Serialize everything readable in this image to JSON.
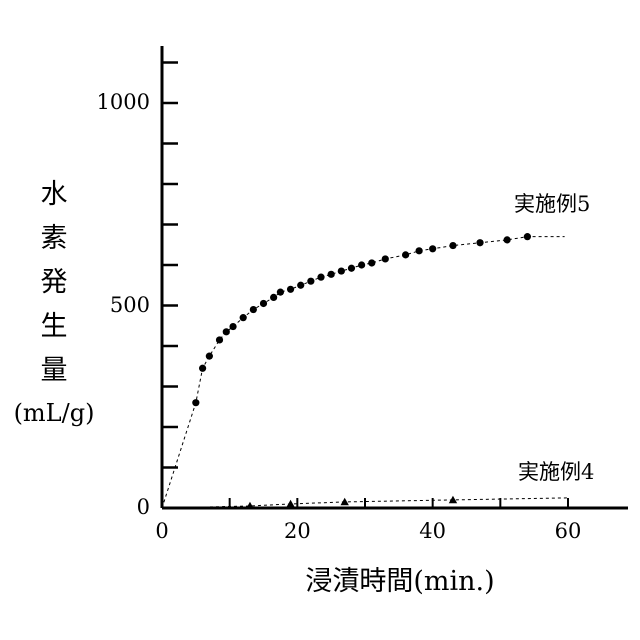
{
  "chart_data": {
    "type": "scatter",
    "title": "",
    "xlabel": "浸漬時間(min.)",
    "ylabel_chars": [
      "水",
      "素",
      "発",
      "生",
      "量"
    ],
    "ylabel_unit": "(mL/g)",
    "xlim": [
      0,
      70
    ],
    "ylim": [
      0,
      1150
    ],
    "x_ticks": [
      0,
      20,
      40,
      60
    ],
    "x_tick_labels": [
      "0",
      "20",
      "40",
      "60"
    ],
    "y_ticks": [
      0,
      500,
      1000
    ],
    "y_tick_labels": [
      "0",
      "500",
      "1000"
    ],
    "grid": false,
    "legend": "none",
    "series": [
      {
        "name": "実施例5",
        "marker": "circle",
        "line_style": "dashed",
        "x": [
          0,
          5,
          6,
          7,
          8.5,
          9.5,
          10.5,
          12,
          13.5,
          15,
          16.5,
          17.5,
          19,
          20.5,
          22,
          23.5,
          25,
          26.5,
          28,
          29.5,
          31,
          33,
          36,
          38,
          40,
          43,
          47,
          51,
          54,
          59.5
        ],
        "y": [
          0,
          260,
          345,
          375,
          415,
          435,
          448,
          470,
          490,
          505,
          520,
          533,
          540,
          550,
          560,
          570,
          577,
          585,
          592,
          600,
          605,
          615,
          625,
          635,
          640,
          648,
          655,
          662,
          670,
          670
        ]
      },
      {
        "name": "実施例4",
        "marker": "triangle",
        "line_style": "dashed",
        "x": [
          0,
          13,
          19,
          27,
          43,
          60
        ],
        "y": [
          0,
          5,
          10,
          15,
          20,
          25
        ]
      }
    ]
  }
}
